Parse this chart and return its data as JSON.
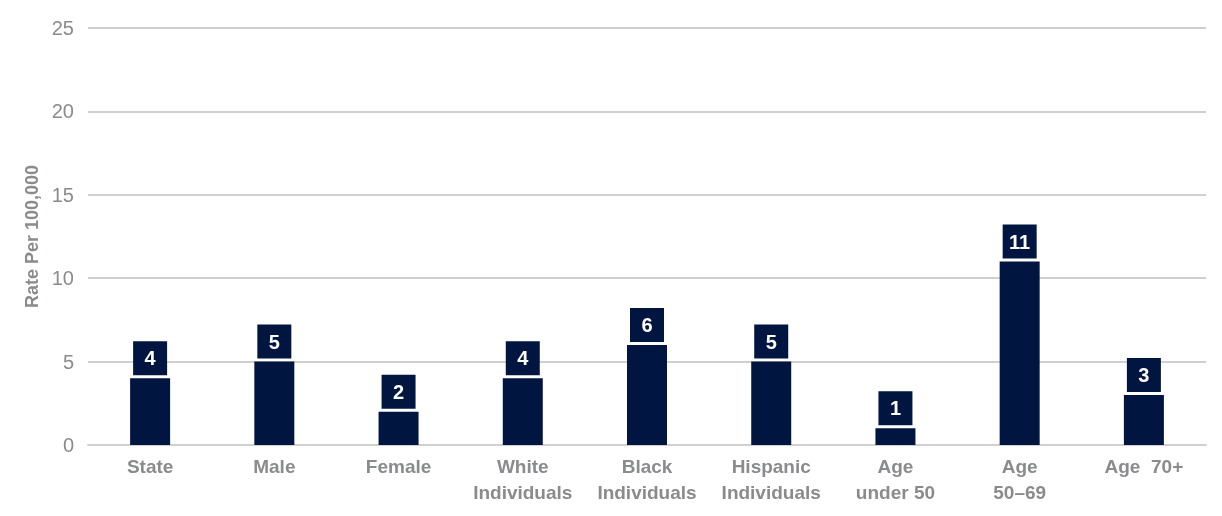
{
  "chart_data": {
    "type": "bar",
    "ylabel": "Rate Per 100,000",
    "categories": [
      "State",
      "Male",
      "Female",
      "White\nIndividuals",
      "Black\nIndividuals",
      "Hispanic\nIndividuals",
      "Age\nunder 50",
      "Age\n50–69",
      "Age  70+"
    ],
    "values": [
      4,
      5,
      2,
      4,
      6,
      5,
      1,
      11,
      3
    ],
    "color": "#001641",
    "ylim": [
      0,
      25
    ],
    "yticks": [
      0,
      5,
      10,
      15,
      20,
      25
    ],
    "grid": "y",
    "data_labels": true
  }
}
